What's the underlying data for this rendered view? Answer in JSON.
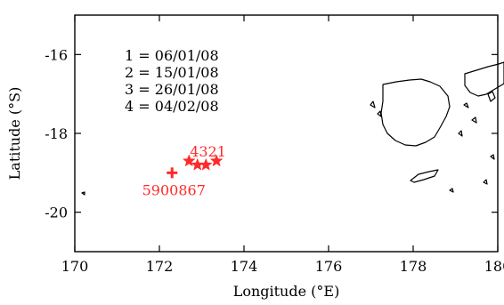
{
  "chart_data": {
    "type": "scatter",
    "title": "",
    "xlabel": "Longitude (°E)",
    "ylabel": "Latitude (°S)",
    "xlim": [
      170,
      180
    ],
    "ylim": [
      -21,
      -15
    ],
    "xticks": [
      170,
      172,
      174,
      176,
      178,
      180
    ],
    "xtick_labels": [
      "170",
      "172",
      "174",
      "176",
      "178",
      "180"
    ],
    "yticks": [
      -16,
      -18,
      -20
    ],
    "ytick_labels": [
      "-16",
      "-18",
      "-20"
    ],
    "grid": false,
    "legend_lines": [
      "1 = 06/01/08",
      "2 = 15/01/08",
      "3 = 26/01/08",
      "4 = 04/02/08"
    ],
    "deployment": {
      "label": "5900867",
      "x": 172.3,
      "y": -19.0,
      "marker": "plus",
      "color": "#ff2a2a"
    },
    "profiles": [
      {
        "label": "1",
        "x": 173.35,
        "y": -18.7,
        "marker": "star",
        "color": "#ff2a2a"
      },
      {
        "label": "2",
        "x": 173.1,
        "y": -18.8,
        "marker": "star",
        "color": "#ff2a2a"
      },
      {
        "label": "3",
        "x": 172.9,
        "y": -18.8,
        "marker": "star",
        "color": "#ff2a2a"
      },
      {
        "label": "4",
        "x": 172.7,
        "y": -18.7,
        "marker": "star",
        "color": "#ff2a2a"
      }
    ],
    "profile_label_text": "4321",
    "coastline_color": "#000000"
  }
}
